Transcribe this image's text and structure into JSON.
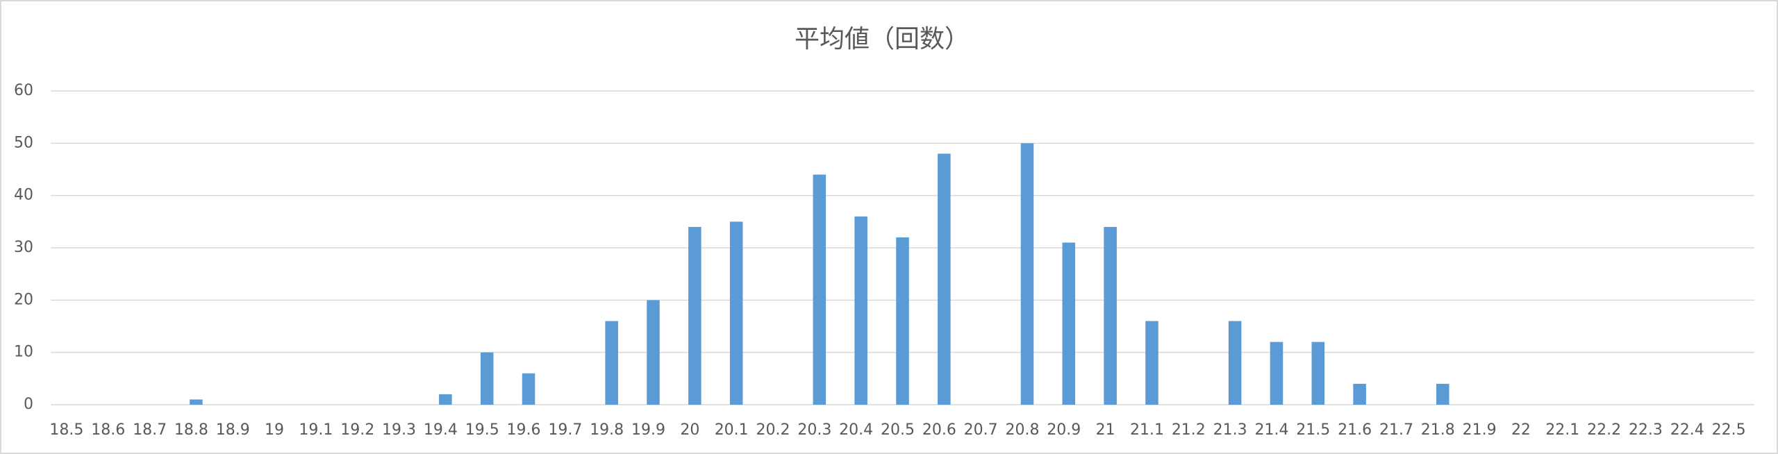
{
  "chart_data": {
    "type": "bar",
    "title": "平均値（回数）",
    "categories": [
      "18.5",
      "18.6",
      "18.7",
      "18.8",
      "18.9",
      "19",
      "19.1",
      "19.2",
      "19.3",
      "19.4",
      "19.5",
      "19.6",
      "19.7",
      "19.8",
      "19.9",
      "20",
      "20.1",
      "20.2",
      "20.3",
      "20.4",
      "20.5",
      "20.6",
      "20.7",
      "20.8",
      "20.9",
      "21",
      "21.1",
      "21.2",
      "21.3",
      "21.4",
      "21.5",
      "21.6",
      "21.7",
      "21.8",
      "21.9",
      "22",
      "22.1",
      "22.2",
      "22.3",
      "22.4",
      "22.5"
    ],
    "values": [
      0,
      0,
      0,
      1,
      0,
      0,
      0,
      0,
      0,
      2,
      10,
      6,
      0,
      16,
      20,
      34,
      35,
      0,
      44,
      36,
      32,
      48,
      0,
      50,
      31,
      34,
      16,
      0,
      16,
      12,
      12,
      4,
      0,
      4,
      0,
      0,
      0,
      0,
      0,
      0,
      0
    ],
    "color": "#5b9bd5",
    "ylim": [
      0,
      60
    ],
    "yticks": [
      0,
      10,
      20,
      30,
      40,
      50,
      60
    ],
    "grid": true
  }
}
